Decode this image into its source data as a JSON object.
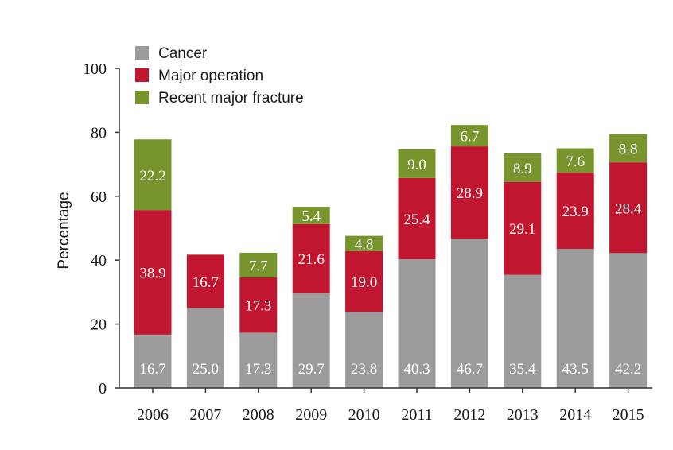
{
  "chart_data": {
    "type": "bar",
    "stacked": true,
    "categories": [
      "2006",
      "2007",
      "2008",
      "2009",
      "2010",
      "2011",
      "2012",
      "2013",
      "2014",
      "2015"
    ],
    "series": [
      {
        "name": "Cancer",
        "color": "#9b9b9b",
        "values": [
          16.7,
          25.0,
          17.3,
          29.7,
          23.8,
          40.3,
          46.7,
          35.4,
          43.5,
          42.2
        ],
        "labels": [
          "16.7",
          "25.0",
          "17.3",
          "29.7",
          "23.8",
          "40.3",
          "46.7",
          "35.4",
          "43.5",
          "42.2"
        ]
      },
      {
        "name": "Major operation",
        "color": "#c0162f",
        "values": [
          38.9,
          16.7,
          17.3,
          21.6,
          19.0,
          25.4,
          28.9,
          29.1,
          23.9,
          28.4
        ],
        "labels": [
          "38.9",
          "16.7",
          "17.3",
          "21.6",
          "19.0",
          "25.4",
          "28.9",
          "29.1",
          "23.9",
          "28.4"
        ]
      },
      {
        "name": "Recent major fracture",
        "color": "#77952c",
        "values": [
          22.2,
          0,
          7.7,
          5.4,
          4.8,
          9.0,
          6.7,
          8.9,
          7.6,
          8.8
        ],
        "labels": [
          "22.2",
          "",
          "7.7",
          "5.4",
          "4.8",
          "9.0",
          "6.7",
          "8.9",
          "7.6",
          "8.8"
        ]
      }
    ],
    "ylabel": "Percentage",
    "ylim": [
      0,
      100
    ],
    "yticks": [
      "0",
      "20",
      "40",
      "60",
      "80",
      "100"
    ],
    "legend_position": "top-left",
    "grid": false
  }
}
